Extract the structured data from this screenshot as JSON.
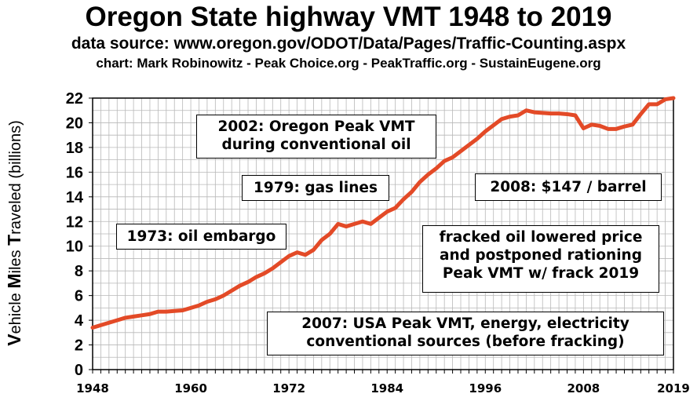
{
  "header": {
    "title": "Oregon State highway VMT 1948 to 2019",
    "source": "data source:  www.oregon.gov/ODOT/Data/Pages/Traffic-Counting.aspx",
    "credit": "chart: Mark Robinowitz - Peak Choice.org - PeakTraffic.org - SustainEugene.org"
  },
  "chart_data": {
    "type": "line",
    "title": "Oregon State highway VMT 1948 to 2019",
    "ylabel_parts": [
      "V",
      "ehicle ",
      "M",
      "iles ",
      "T",
      "raveled (billions)"
    ],
    "xlim": [
      1948,
      2019
    ],
    "ylim": [
      0,
      22
    ],
    "xticks": [
      "1948",
      "1960",
      "1972",
      "1984",
      "1996",
      "2008",
      "2019"
    ],
    "yticks": [
      "0",
      "2",
      "4",
      "6",
      "8",
      "10",
      "12",
      "14",
      "16",
      "18",
      "20",
      "22"
    ],
    "grid": true,
    "line_color": "#E34A27",
    "series": [
      {
        "x": [
          1948,
          1949,
          1950,
          1951,
          1952,
          1953,
          1954,
          1955,
          1956,
          1957,
          1958,
          1959,
          1960,
          1961,
          1962,
          1963,
          1964,
          1965,
          1966,
          1967,
          1968,
          1969,
          1970,
          1971,
          1972,
          1973,
          1974,
          1975,
          1976,
          1977,
          1978,
          1979,
          1980,
          1981,
          1982,
          1983,
          1984,
          1985,
          1986,
          1987,
          1988,
          1989,
          1990,
          1991,
          1992,
          1993,
          1994,
          1995,
          1996,
          1997,
          1998,
          1999,
          2000,
          2001,
          2002,
          2003,
          2004,
          2005,
          2006,
          2007,
          2008,
          2009,
          2010,
          2011,
          2012,
          2013,
          2014,
          2015,
          2016,
          2017,
          2018,
          2019
        ],
        "y": [
          3.4,
          3.6,
          3.8,
          4.0,
          4.2,
          4.3,
          4.4,
          4.5,
          4.7,
          4.7,
          4.75,
          4.8,
          5.0,
          5.2,
          5.5,
          5.7,
          6.0,
          6.4,
          6.8,
          7.1,
          7.5,
          7.8,
          8.2,
          8.7,
          9.2,
          9.5,
          9.3,
          9.7,
          10.5,
          11.0,
          11.8,
          11.6,
          11.8,
          12.0,
          11.8,
          12.3,
          12.8,
          13.1,
          13.8,
          14.4,
          15.2,
          15.8,
          16.3,
          16.9,
          17.2,
          17.7,
          18.2,
          18.7,
          19.3,
          19.8,
          20.3,
          20.5,
          20.6,
          21.0,
          20.85,
          20.8,
          20.75,
          20.75,
          20.7,
          20.6,
          19.55,
          19.85,
          19.75,
          19.5,
          19.5,
          19.7,
          19.85,
          20.7,
          21.5,
          21.5,
          21.9,
          22.0
        ]
      }
    ]
  },
  "annotations": [
    {
      "text": "2002: Oregon Peak VMT"
    },
    {
      "text": "during conventional oil"
    },
    {
      "text": "1979: gas lines"
    },
    {
      "text": "2008: $147 / barrel"
    },
    {
      "text": "1973: oil embargo"
    },
    {
      "text": "fracked oil lowered price"
    },
    {
      "text": "and postponed rationing"
    },
    {
      "text": "Peak VMT w/ frack 2019"
    },
    {
      "text": "2007: USA Peak VMT, energy, electricity"
    },
    {
      "text": "conventional sources (before fracking)"
    }
  ]
}
